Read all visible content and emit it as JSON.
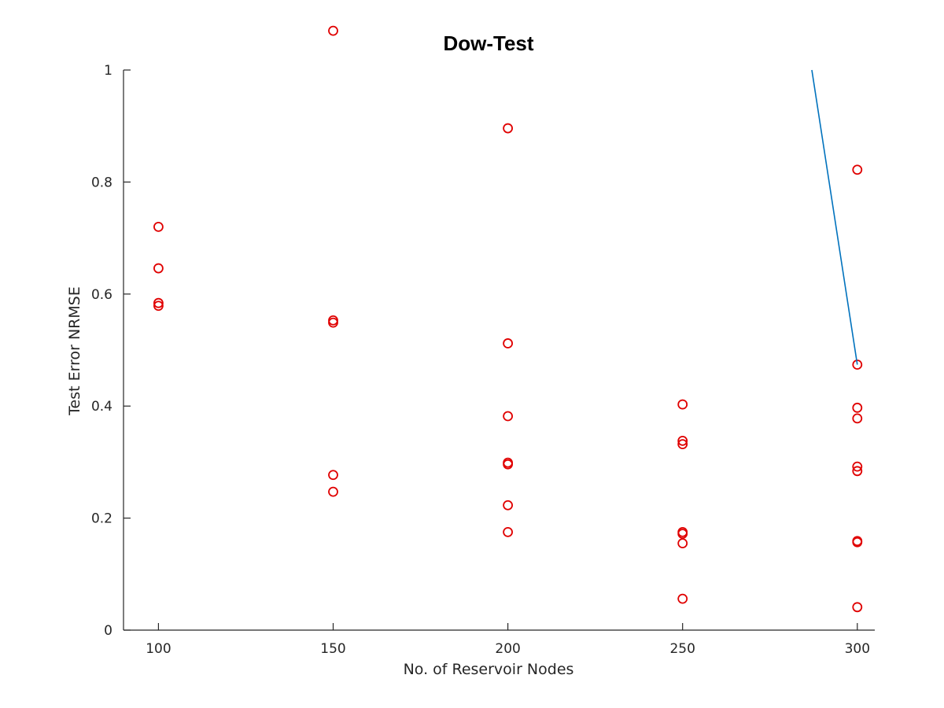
{
  "chart_data": {
    "type": "scatter",
    "title": "Dow-Test",
    "xlabel": "No. of Reservoir Nodes",
    "ylabel": "Test Error NRMSE",
    "xlim": [
      90,
      305
    ],
    "ylim": [
      0,
      1
    ],
    "xticks": [
      100,
      150,
      200,
      250,
      300
    ],
    "yticks": [
      0,
      0.2,
      0.4,
      0.6,
      0.8,
      1
    ],
    "ytick_labels": [
      "0",
      "0.2",
      "0.4",
      "0.6",
      "0.8",
      "1"
    ],
    "grid": false,
    "series": [
      {
        "marker": "circle",
        "color": "#e00000",
        "points": [
          [
            100,
            0.72
          ],
          [
            100,
            0.646
          ],
          [
            100,
            0.584
          ],
          [
            100,
            0.579
          ],
          [
            150,
            1.07
          ],
          [
            150,
            0.553
          ],
          [
            150,
            0.549
          ],
          [
            150,
            0.277
          ],
          [
            150,
            0.247
          ],
          [
            200,
            0.896
          ],
          [
            200,
            0.512
          ],
          [
            200,
            0.382
          ],
          [
            200,
            0.299
          ],
          [
            200,
            0.296
          ],
          [
            200,
            0.223
          ],
          [
            200,
            0.175
          ],
          [
            250,
            0.403
          ],
          [
            250,
            0.338
          ],
          [
            250,
            0.332
          ],
          [
            250,
            0.175
          ],
          [
            250,
            0.172
          ],
          [
            250,
            0.155
          ],
          [
            250,
            0.056
          ],
          [
            300,
            0.822
          ],
          [
            300,
            0.474
          ],
          [
            300,
            0.397
          ],
          [
            300,
            0.378
          ],
          [
            300,
            0.292
          ],
          [
            300,
            0.284
          ],
          [
            300,
            0.159
          ],
          [
            300,
            0.157
          ],
          [
            300,
            0.041
          ]
        ]
      },
      {
        "marker": "line",
        "color": "#0072bd",
        "points": [
          [
            287,
            1.0
          ],
          [
            300,
            0.474
          ]
        ]
      }
    ]
  }
}
